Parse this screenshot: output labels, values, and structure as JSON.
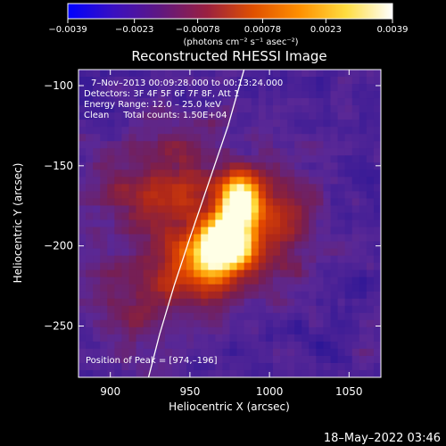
{
  "chart_data": {
    "type": "heatmap",
    "title": "Reconstructed RHESSI Image",
    "xlabel": "Heliocentric X (arcsec)",
    "ylabel": "Heliocentric Y (arcsec)",
    "xlim": [
      880,
      1070
    ],
    "ylim": [
      -282,
      -90
    ],
    "x_ticks": [
      900,
      950,
      1000,
      1050
    ],
    "y_ticks": [
      -100,
      -150,
      -200,
      -250
    ],
    "x_tick_labels": [
      "900",
      "950",
      "1000",
      "1050"
    ],
    "y_tick_labels": [
      "−100",
      "−150",
      "−200",
      "−250"
    ],
    "colorbar": {
      "range": [
        -0.0039,
        0.0039
      ],
      "ticks": [
        -0.0039,
        -0.0023,
        -0.00078,
        0.00078,
        0.0023,
        0.0039
      ],
      "tick_labels": [
        "−0.0039",
        "−0.0023",
        "−0.00078",
        "0.00078",
        "0.0023",
        "0.0039"
      ],
      "unit_label": "(photons cm⁻² s⁻¹ asec⁻²)",
      "stops": [
        "#0000ff",
        "#3a10c0",
        "#601880",
        "#9a2040",
        "#e05000",
        "#ff9000",
        "#ffdd40",
        "#ffffff"
      ]
    },
    "annotations": [
      "7–Nov–2013 00:09:28.000 to 00:13:24.000",
      "Detectors: 3F 4F 5F 6F 7F 8F, Att 1",
      "Energy Range: 12.0 – 25.0 keV",
      "Clean     Total counts: 1.50E+04"
    ],
    "peak_label": "Position of Peak = [974,–196]",
    "peak": [
      974,
      -196
    ],
    "limb_curve": [
      [
        924,
        -282
      ],
      [
        931,
        -255
      ],
      [
        940,
        -225
      ],
      [
        950,
        -195
      ],
      [
        962,
        -160
      ],
      [
        974,
        -125
      ],
      [
        984,
        -90
      ]
    ],
    "sources": [
      {
        "x": 974,
        "y": -196,
        "amp": 1.0,
        "sx": 11,
        "sy": 12
      },
      {
        "x": 982,
        "y": -170,
        "amp": 0.8,
        "sx": 9,
        "sy": 11
      },
      {
        "x": 960,
        "y": -212,
        "amp": 0.55,
        "sx": 17,
        "sy": 15
      },
      {
        "x": 935,
        "y": -165,
        "amp": 0.35,
        "sx": 28,
        "sy": 24
      },
      {
        "x": 1005,
        "y": -185,
        "amp": 0.3,
        "sx": 18,
        "sy": 26
      },
      {
        "x": 920,
        "y": -230,
        "amp": 0.2,
        "sx": 25,
        "sy": 25
      }
    ]
  },
  "footer_timestamp": "18–May–2022 03:46"
}
